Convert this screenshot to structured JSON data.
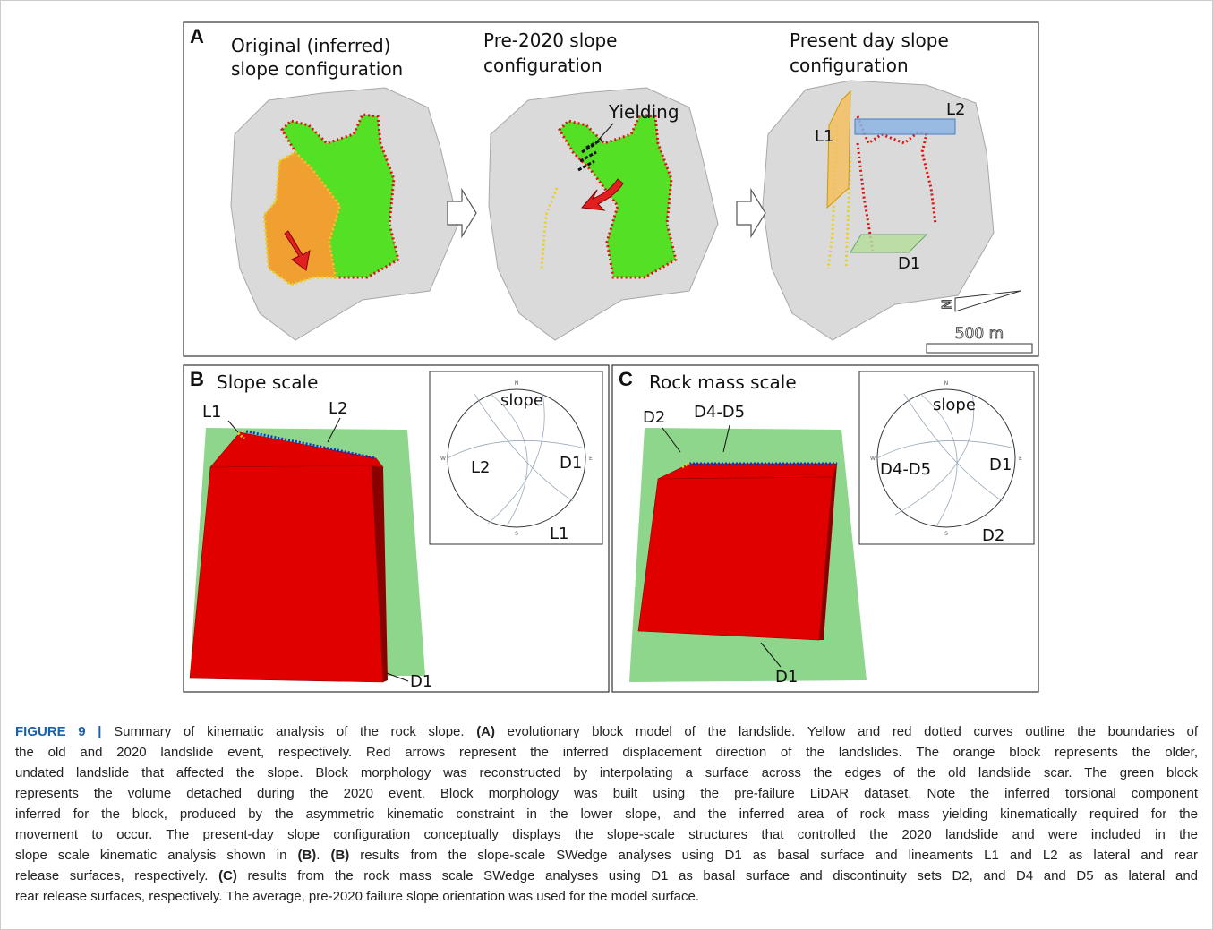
{
  "panel_a": {
    "label": "A",
    "titles": [
      [
        "Original (inferred)",
        "slope configuration"
      ],
      [
        "Pre-2020 slope",
        "configuration"
      ],
      [
        "Present day slope",
        "configuration"
      ]
    ],
    "yielding": "Yielding",
    "lineaments": [
      "L1",
      "L2"
    ],
    "d1": "D1",
    "north": "N",
    "scale_bar": "500 m"
  },
  "panel_b": {
    "label": "B",
    "title": "Slope scale",
    "block_labels": [
      "L1",
      "L2",
      "D1"
    ],
    "stereonet": {
      "directions": [
        "N",
        "E",
        "S",
        "W"
      ],
      "labels": [
        "slope",
        "L2",
        "D1",
        "L1"
      ]
    }
  },
  "panel_c": {
    "label": "C",
    "title": "Rock mass scale",
    "block_labels": [
      "D2",
      "D4-D5",
      "D1"
    ],
    "stereonet": {
      "directions": [
        "N",
        "E",
        "S",
        "W"
      ],
      "labels": [
        "slope",
        "D4-D5",
        "D1",
        "D2"
      ]
    }
  },
  "caption": {
    "lines": [
      [
        "FIGURE 9 |",
        " Summary of kinematic analysis of the rock slope. ",
        "(A)",
        " evolutionary block model of the landslide. Yellow and red dotted curves outline the boundaries of"
      ],
      [
        "the old and 2020 landslide event, respectively. Red arrows represent the inferred displacement direction of the landslides. The orange block represents the older,"
      ],
      [
        "undated landslide that affected the slope. Block morphology was reconstructed by interpolating a surface across the edges of the old landslide scar. The green block"
      ],
      [
        "represents the volume detached during the 2020 event. Block morphology was built using the pre-failure LiDAR dataset. Note the inferred torsional component"
      ],
      [
        "inferred for the block, produced by the asymmetric kinematic constraint in the lower slope, and the inferred area of rock mass yielding kinematically required for the"
      ],
      [
        "movement to occur. The present-day slope configuration conceptually displays the slope-scale structures that controlled the 2020 landslide and were included in the"
      ],
      [
        "slope scale kinematic analysis shown in ",
        "(B)",
        ". ",
        "(B)",
        " results from the slope-scale SWedge analyses using D1 as basal surface and lineaments L1 and L2 as lateral and rear"
      ],
      [
        "release surfaces, respectively. ",
        "(C)",
        " results from the rock mass scale SWedge analyses using D1 as basal surface and discontinuity sets D2, and D4 and D5 as lateral and"
      ],
      [
        "rear release surfaces, respectively. The average, pre-2020 failure slope orientation was used for the model surface."
      ]
    ]
  }
}
